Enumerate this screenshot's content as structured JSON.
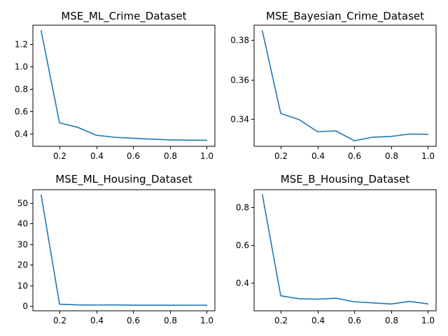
{
  "chart_data": [
    {
      "type": "line",
      "title": "MSE_ML_Crime_Dataset",
      "xlabel": "",
      "ylabel": "",
      "xlim": [
        0.055,
        1.045
      ],
      "ylim": [
        0.29,
        1.365
      ],
      "xticks": [
        0.2,
        0.4,
        0.6,
        0.8,
        1.0
      ],
      "xtick_labels": [
        "0.2",
        "0.4",
        "0.6",
        "0.8",
        "1.0"
      ],
      "yticks": [
        0.4,
        0.6,
        0.8,
        1.0,
        1.2
      ],
      "ytick_labels": [
        "0.4",
        "0.6",
        "0.8",
        "1.0",
        "1.2"
      ],
      "grid": false,
      "series": [
        {
          "color": "#1f77b4",
          "x": [
            0.1,
            0.2,
            0.3,
            0.4,
            0.5,
            0.6,
            0.7,
            0.8,
            0.9,
            1.0
          ],
          "y": [
            1.315,
            0.498,
            0.458,
            0.388,
            0.37,
            0.362,
            0.353,
            0.347,
            0.345,
            0.343
          ]
        }
      ]
    },
    {
      "type": "line",
      "title": "MSE_Bayesian_Crime_Dataset",
      "xlabel": "",
      "ylabel": "",
      "xlim": [
        0.055,
        1.045
      ],
      "ylim": [
        0.3262,
        0.3875
      ],
      "xticks": [
        0.2,
        0.4,
        0.6,
        0.8,
        1.0
      ],
      "xtick_labels": [
        "0.2",
        "0.4",
        "0.6",
        "0.8",
        "1.0"
      ],
      "yticks": [
        0.34,
        0.36,
        0.38
      ],
      "ytick_labels": [
        "0.34",
        "0.36",
        "0.38"
      ],
      "grid": false,
      "series": [
        {
          "color": "#1f77b4",
          "x": [
            0.1,
            0.2,
            0.3,
            0.4,
            0.5,
            0.6,
            0.7,
            0.8,
            0.9,
            1.0
          ],
          "y": [
            0.3846,
            0.3428,
            0.3397,
            0.3336,
            0.334,
            0.329,
            0.3308,
            0.3312,
            0.3324,
            0.3323
          ]
        }
      ]
    },
    {
      "type": "line",
      "title": "MSE_ML_Housing_Dataset",
      "xlabel": "",
      "ylabel": "",
      "xlim": [
        0.055,
        1.045
      ],
      "ylim": [
        -2.4,
        56.4
      ],
      "xticks": [
        0.2,
        0.4,
        0.6,
        0.8,
        1.0
      ],
      "xtick_labels": [
        "0.2",
        "0.4",
        "0.6",
        "0.8",
        "1.0"
      ],
      "yticks": [
        0,
        10,
        20,
        30,
        40,
        50
      ],
      "ytick_labels": [
        "0",
        "10",
        "20",
        "30",
        "40",
        "50"
      ],
      "grid": false,
      "series": [
        {
          "color": "#1f77b4",
          "x": [
            0.1,
            0.2,
            0.3,
            0.4,
            0.5,
            0.6,
            0.7,
            0.8,
            0.9,
            1.0
          ],
          "y": [
            53.8,
            0.8,
            0.45,
            0.4,
            0.45,
            0.35,
            0.33,
            0.3,
            0.32,
            0.3
          ]
        }
      ]
    },
    {
      "type": "line",
      "title": "MSE_B_Housing_Dataset",
      "xlabel": "",
      "ylabel": "",
      "xlim": [
        0.055,
        1.045
      ],
      "ylim": [
        0.25,
        0.895
      ],
      "xticks": [
        0.2,
        0.4,
        0.6,
        0.8,
        1.0
      ],
      "xtick_labels": [
        "0.2",
        "0.4",
        "0.6",
        "0.8",
        "1.0"
      ],
      "yticks": [
        0.4,
        0.6,
        0.8
      ],
      "ytick_labels": [
        "0.4",
        "0.6",
        "0.8"
      ],
      "grid": false,
      "series": [
        {
          "color": "#1f77b4",
          "x": [
            0.1,
            0.2,
            0.3,
            0.4,
            0.5,
            0.6,
            0.7,
            0.8,
            0.9,
            1.0
          ],
          "y": [
            0.868,
            0.33,
            0.314,
            0.312,
            0.317,
            0.298,
            0.292,
            0.286,
            0.3,
            0.287
          ]
        }
      ]
    }
  ]
}
